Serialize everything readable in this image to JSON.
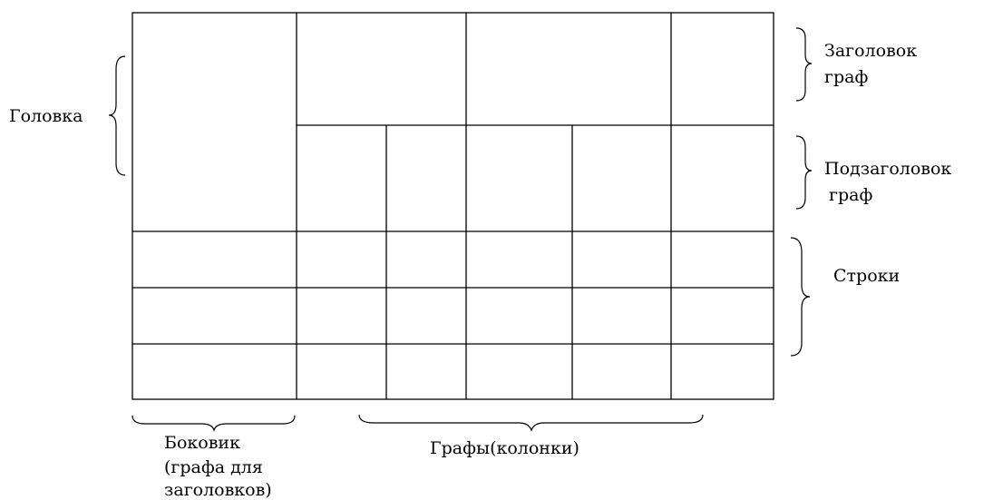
{
  "labels": {
    "head": "Головка",
    "column_header_line1": "Заголовок",
    "column_header_line2": "граф",
    "column_subheader_line1": "Подзаголовок",
    "column_subheader_line2": "граф",
    "rows": "Строки",
    "stub_line1": "Боковик",
    "stub_line2": "(графа для",
    "stub_line3": "заголовков)",
    "columns": "Графы(колонки)"
  },
  "colors": {
    "line": "#000000",
    "background": "#ffffff"
  }
}
